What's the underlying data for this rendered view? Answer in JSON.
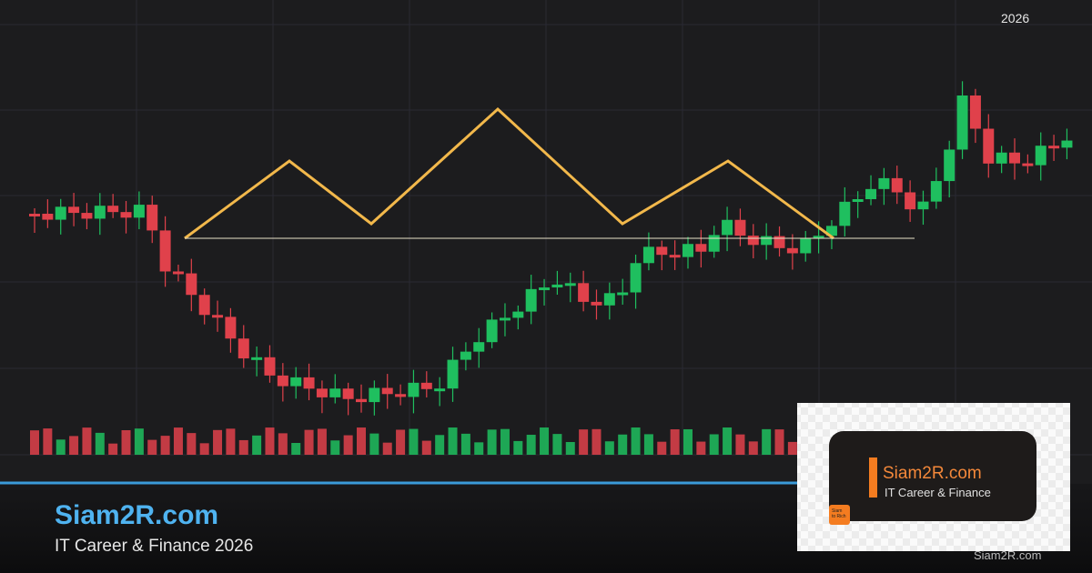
{
  "header": {
    "year": "2026"
  },
  "footer": {
    "title": "Siam2R.com",
    "subtitle": "IT Career & Finance 2026"
  },
  "badge": {
    "title": "Siam2R.com",
    "subtitle": "IT Career & Finance",
    "logo_lines": [
      "Siam",
      "to Rich"
    ],
    "watermark": "Siam2R.com"
  }
}
